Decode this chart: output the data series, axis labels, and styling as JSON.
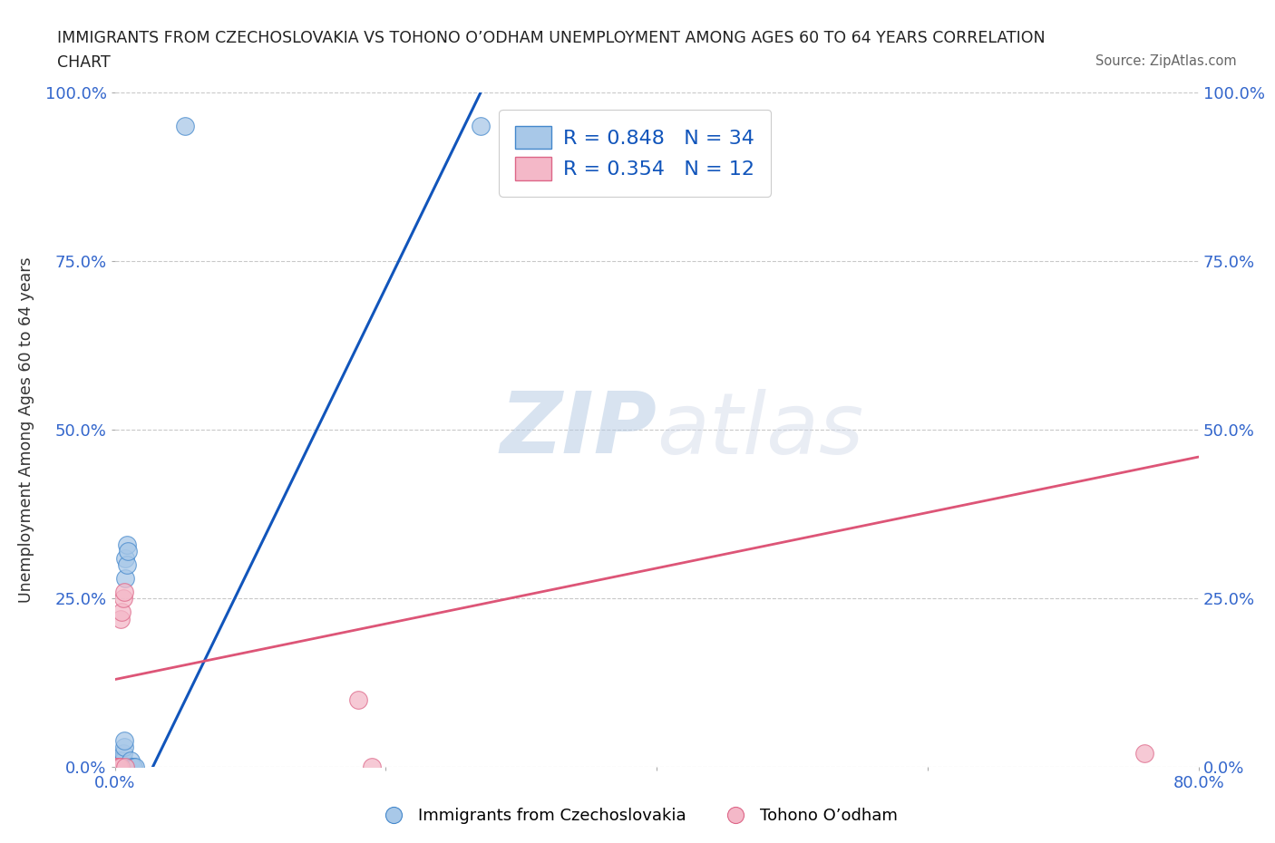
{
  "title_line1": "IMMIGRANTS FROM CZECHOSLOVAKIA VS TOHONO O’ODHAM UNEMPLOYMENT AMONG AGES 60 TO 64 YEARS CORRELATION",
  "title_line2": "CHART",
  "source": "Source: ZipAtlas.com",
  "ylabel": "Unemployment Among Ages 60 to 64 years",
  "xlim": [
    0.0,
    0.8
  ],
  "ylim": [
    0.0,
    1.0
  ],
  "xticks": [
    0.0,
    0.2,
    0.4,
    0.6,
    0.8
  ],
  "xticklabels": [
    "0.0%",
    "",
    "",
    "",
    "80.0%"
  ],
  "yticks": [
    0.0,
    0.25,
    0.5,
    0.75,
    1.0
  ],
  "yticklabels": [
    "0.0%",
    "25.0%",
    "50.0%",
    "75.0%",
    "100.0%"
  ],
  "blue_scatter_x": [
    0.001,
    0.001,
    0.001,
    0.002,
    0.002,
    0.002,
    0.002,
    0.003,
    0.003,
    0.003,
    0.004,
    0.004,
    0.004,
    0.005,
    0.005,
    0.005,
    0.006,
    0.006,
    0.006,
    0.007,
    0.007,
    0.008,
    0.008,
    0.009,
    0.009,
    0.01,
    0.01,
    0.012,
    0.012,
    0.013,
    0.014,
    0.015,
    0.052,
    0.27
  ],
  "blue_scatter_y": [
    0.0,
    0.0,
    0.0,
    0.0,
    0.0,
    0.0,
    0.01,
    0.0,
    0.0,
    0.01,
    0.0,
    0.0,
    0.01,
    0.0,
    0.0,
    0.01,
    0.0,
    0.01,
    0.02,
    0.03,
    0.04,
    0.28,
    0.31,
    0.3,
    0.33,
    0.32,
    0.0,
    0.0,
    0.01,
    0.0,
    0.0,
    0.0,
    0.95,
    0.95
  ],
  "pink_scatter_x": [
    0.001,
    0.002,
    0.003,
    0.004,
    0.004,
    0.005,
    0.006,
    0.007,
    0.008,
    0.18,
    0.19,
    0.76
  ],
  "pink_scatter_y": [
    0.0,
    0.0,
    0.0,
    0.0,
    0.22,
    0.23,
    0.25,
    0.26,
    0.0,
    0.1,
    0.0,
    0.02
  ],
  "blue_line_x": [
    0.028,
    0.27
  ],
  "blue_line_y": [
    0.0,
    1.0
  ],
  "pink_line_x": [
    0.0,
    0.8
  ],
  "pink_line_y": [
    0.13,
    0.46
  ],
  "blue_color": "#a8c8e8",
  "blue_edge_color": "#4488cc",
  "blue_line_color": "#1155bb",
  "pink_color": "#f4b8c8",
  "pink_edge_color": "#dd6688",
  "pink_line_color": "#dd5577",
  "R_blue": 0.848,
  "N_blue": 34,
  "R_pink": 0.354,
  "N_pink": 12,
  "legend_label_blue": "Immigrants from Czechoslovakia",
  "legend_label_pink": "Tohono O’odham",
  "watermark_zip": "ZIP",
  "watermark_atlas": "atlas",
  "background_color": "#ffffff",
  "grid_color": "#bbbbbb"
}
